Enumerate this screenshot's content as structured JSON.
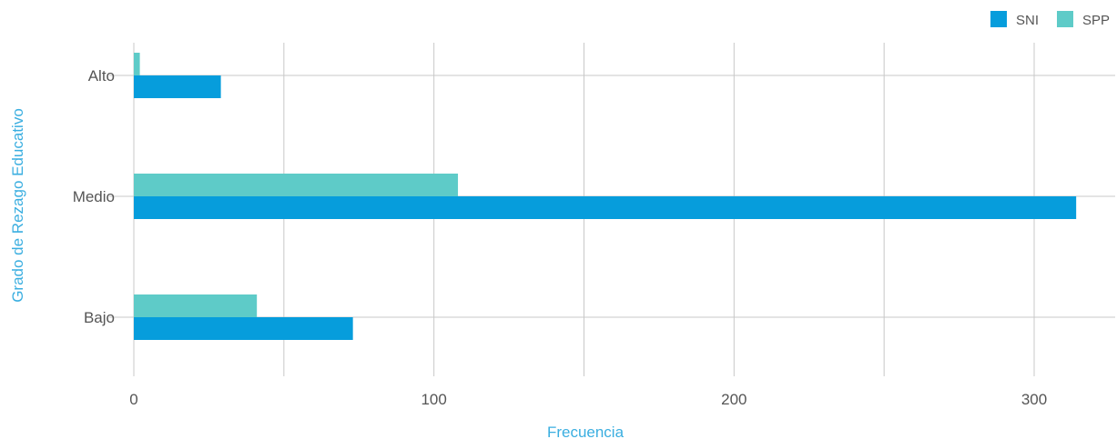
{
  "chart_data": {
    "type": "bar",
    "orientation": "horizontal",
    "categories": [
      "Alto",
      "Medio",
      "Bajo"
    ],
    "series": [
      {
        "name": "SNI",
        "values": [
          29,
          314,
          73
        ],
        "color": "#069ddc"
      },
      {
        "name": "SPP",
        "values": [
          2,
          108,
          41
        ],
        "color": "#5ecbc8"
      }
    ],
    "xlabel": "Frecuencia",
    "ylabel": "Grado de Rezago Educativo",
    "xlim": [
      0,
      328
    ],
    "x_ticks": [
      0,
      100,
      200,
      300
    ],
    "x_gridlines": [
      0,
      50,
      100,
      150,
      200,
      250,
      300
    ],
    "grid": true,
    "legend_position": "top-right"
  }
}
